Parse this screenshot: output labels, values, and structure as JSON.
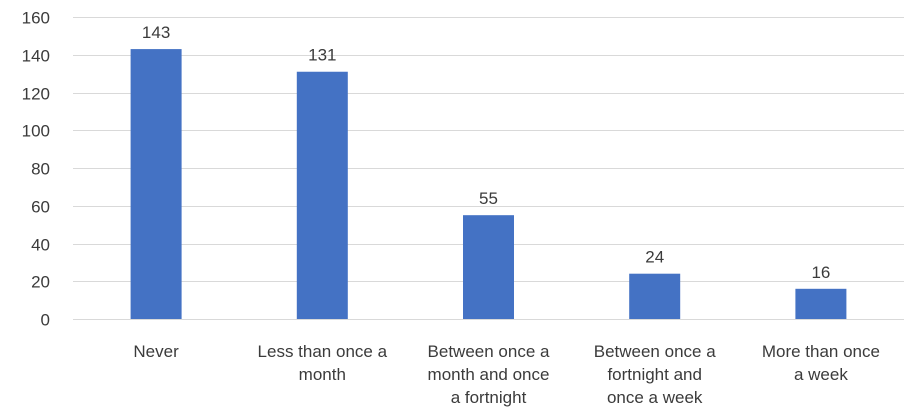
{
  "chart_data": {
    "type": "bar",
    "categories": [
      "Never",
      "Less than once a month",
      "Between once a month and once a fortnight",
      "Between once a fortnight and once a week",
      "More than once a week"
    ],
    "category_label_lines": [
      [
        "Never"
      ],
      [
        "Less than once a",
        "month"
      ],
      [
        "Between once a",
        "month and once",
        "a fortnight"
      ],
      [
        "Between once a",
        "fortnight and",
        "once a week"
      ],
      [
        "More than once",
        "a week"
      ]
    ],
    "values": [
      143,
      131,
      55,
      24,
      16
    ],
    "data_labels": [
      "143",
      "131",
      "55",
      "24",
      "16"
    ],
    "yticks": [
      0,
      20,
      40,
      60,
      80,
      100,
      120,
      140,
      160
    ],
    "ylim": [
      0,
      160
    ],
    "title": "",
    "xlabel": "",
    "ylabel": "",
    "grid": true,
    "legend": "none",
    "bar_color": "#4472c4",
    "grid_color": "#d9d9d9",
    "text_color": "#3b3b3b"
  }
}
